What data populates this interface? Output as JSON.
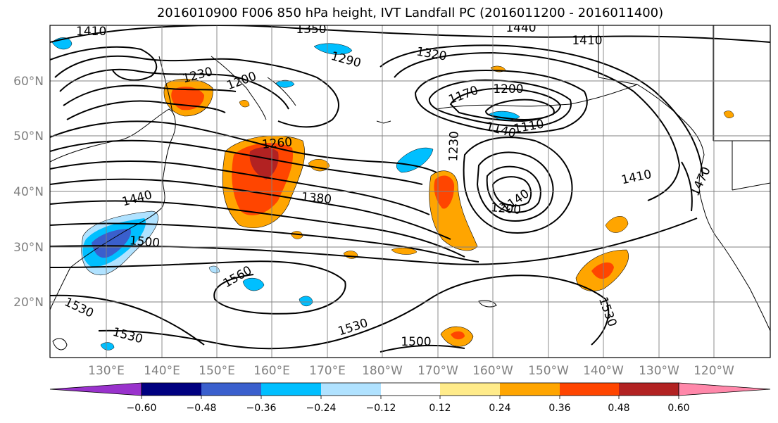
{
  "title": "2016010900 F006 850 hPa height, IVT Landfall PC (2016011200 - 2016011400)",
  "longitude_labels": [
    "130°E",
    "140°E",
    "150°E",
    "160°E",
    "170°E",
    "180°W",
    "170°W",
    "160°W",
    "150°W",
    "140°W",
    "130°W",
    "120°W"
  ],
  "latitude_labels": [
    "60°N",
    "50°N",
    "40°N",
    "30°N",
    "20°N"
  ],
  "contour_labels": [
    "1410",
    "1350",
    "1440",
    "1410",
    "1290",
    "1320",
    "1230",
    "1200",
    "1170",
    "1200",
    "1140",
    "1110",
    "1260",
    "1230",
    "1410",
    "1470",
    "1440",
    "1380",
    "1500",
    "1200",
    "1140",
    "1560",
    "1530",
    "1530",
    "1530",
    "1500",
    "1530"
  ],
  "colorbar": {
    "ticks": [
      "−0.60",
      "−0.48",
      "−0.36",
      "−0.24",
      "−0.12",
      "0.12",
      "0.24",
      "0.36",
      "0.48",
      "0.60"
    ],
    "colors": [
      "#9932cc",
      "#000080",
      "#3a5fcd",
      "#00bfff",
      "#b0e2ff",
      "#ffffff",
      "#ffeb8a",
      "#ffa500",
      "#ff4500",
      "#b22222",
      "#ff88aa"
    ]
  }
}
